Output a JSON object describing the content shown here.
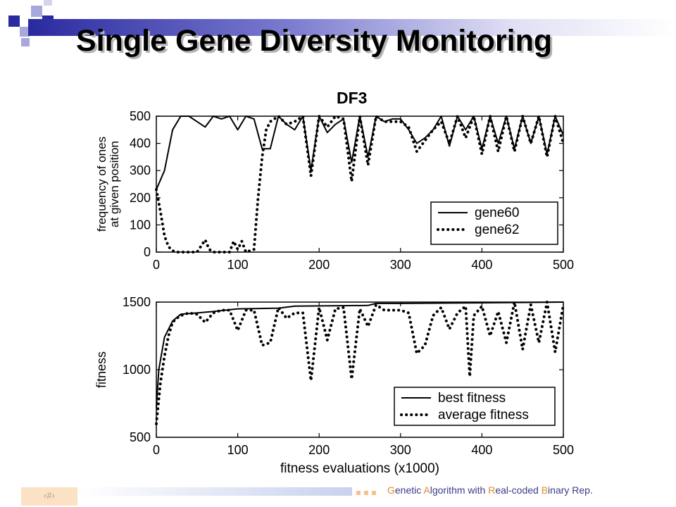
{
  "slide": {
    "title": "Single Gene Diversity Monitoring",
    "page_number": "‹#›"
  },
  "footer": {
    "segments": [
      {
        "text": "G",
        "cap": true
      },
      {
        "text": "enetic ",
        "cap": false
      },
      {
        "text": "A",
        "cap": true
      },
      {
        "text": "lgorithm with ",
        "cap": false
      },
      {
        "text": "R",
        "cap": true
      },
      {
        "text": "eal-coded ",
        "cap": false
      },
      {
        "text": "B",
        "cap": true
      },
      {
        "text": "inary Rep.",
        "cap": false
      }
    ]
  },
  "colors": {
    "title_bar": "#2a2aa0",
    "deco_dark": "#2a2aa0",
    "deco_light": "#a8a8dc",
    "footer_accent": "#e08a2e",
    "footer_text": "#3a3a8a"
  },
  "chart_data": [
    {
      "type": "line",
      "title": "DF3",
      "xlabel": "",
      "ylabel": "frequency of ones at given position",
      "xlim": [
        0,
        500
      ],
      "ylim": [
        0,
        500
      ],
      "xticks": [
        0,
        100,
        200,
        300,
        400,
        500
      ],
      "yticks": [
        0,
        100,
        200,
        300,
        400,
        500
      ],
      "legend_position": "bottom-right",
      "series": [
        {
          "name": "gene60",
          "style": "solid",
          "x": [
            0,
            10,
            20,
            30,
            40,
            50,
            60,
            70,
            80,
            90,
            100,
            110,
            120,
            130,
            140,
            150,
            160,
            170,
            180,
            190,
            200,
            210,
            220,
            230,
            240,
            250,
            260,
            270,
            280,
            290,
            300,
            310,
            320,
            330,
            340,
            350,
            360,
            370,
            380,
            390,
            400,
            410,
            420,
            430,
            440,
            450,
            460,
            470,
            480,
            490,
            500
          ],
          "y": [
            230,
            300,
            450,
            500,
            500,
            480,
            460,
            500,
            490,
            500,
            450,
            500,
            490,
            380,
            380,
            500,
            470,
            450,
            500,
            300,
            500,
            440,
            470,
            490,
            330,
            500,
            350,
            500,
            480,
            490,
            490,
            450,
            400,
            420,
            450,
            500,
            390,
            500,
            450,
            500,
            380,
            500,
            400,
            500,
            380,
            500,
            400,
            500,
            360,
            500,
            430
          ]
        },
        {
          "name": "gene62",
          "style": "dotted",
          "x": [
            0,
            5,
            10,
            15,
            20,
            25,
            30,
            40,
            50,
            60,
            65,
            70,
            80,
            90,
            95,
            100,
            105,
            110,
            120,
            125,
            130,
            135,
            140,
            150,
            160,
            170,
            180,
            190,
            200,
            210,
            220,
            230,
            240,
            250,
            260,
            270,
            280,
            290,
            300,
            310,
            320,
            330,
            340,
            350,
            360,
            370,
            380,
            390,
            400,
            410,
            420,
            430,
            440,
            450,
            460,
            470,
            480,
            490,
            500
          ],
          "y": [
            230,
            150,
            60,
            20,
            5,
            0,
            0,
            0,
            0,
            45,
            10,
            0,
            0,
            0,
            40,
            10,
            40,
            0,
            10,
            200,
            350,
            450,
            480,
            500,
            470,
            480,
            500,
            280,
            500,
            460,
            500,
            490,
            260,
            500,
            320,
            500,
            480,
            480,
            480,
            460,
            370,
            410,
            450,
            480,
            400,
            500,
            420,
            500,
            360,
            500,
            370,
            500,
            370,
            500,
            400,
            500,
            350,
            500,
            400
          ]
        }
      ]
    },
    {
      "type": "line",
      "title": "",
      "xlabel": "fitness evaluations (x1000)",
      "ylabel": "fitness",
      "xlim": [
        0,
        500
      ],
      "ylim": [
        500,
        1500
      ],
      "xticks": [
        0,
        100,
        200,
        300,
        400,
        500
      ],
      "yticks": [
        500,
        1000,
        1500
      ],
      "legend_position": "bottom-right",
      "series": [
        {
          "name": "best fitness",
          "style": "solid",
          "x": [
            0,
            3,
            10,
            20,
            30,
            50,
            70,
            100,
            150,
            170,
            260,
            270,
            300,
            400,
            500
          ],
          "y": [
            720,
            1000,
            1240,
            1360,
            1410,
            1420,
            1430,
            1450,
            1455,
            1470,
            1475,
            1490,
            1490,
            1495,
            1500
          ]
        },
        {
          "name": "average fitness",
          "style": "dotted",
          "x": [
            0,
            5,
            10,
            15,
            20,
            25,
            30,
            40,
            50,
            60,
            70,
            80,
            90,
            100,
            110,
            120,
            130,
            140,
            150,
            160,
            170,
            180,
            190,
            200,
            210,
            220,
            230,
            240,
            250,
            260,
            270,
            280,
            290,
            300,
            310,
            320,
            330,
            340,
            350,
            360,
            370,
            380,
            385,
            390,
            400,
            410,
            420,
            430,
            440,
            450,
            460,
            470,
            480,
            490,
            500
          ],
          "y": [
            600,
            900,
            1100,
            1250,
            1350,
            1380,
            1400,
            1420,
            1410,
            1350,
            1420,
            1440,
            1440,
            1290,
            1440,
            1440,
            1180,
            1200,
            1460,
            1380,
            1420,
            1420,
            920,
            1460,
            1220,
            1450,
            1460,
            930,
            1450,
            1320,
            1480,
            1440,
            1440,
            1440,
            1420,
            1120,
            1180,
            1400,
            1460,
            1300,
            1420,
            1470,
            950,
            1400,
            1470,
            1250,
            1430,
            1200,
            1500,
            1150,
            1480,
            1200,
            1500,
            1130,
            1480
          ]
        }
      ]
    }
  ]
}
